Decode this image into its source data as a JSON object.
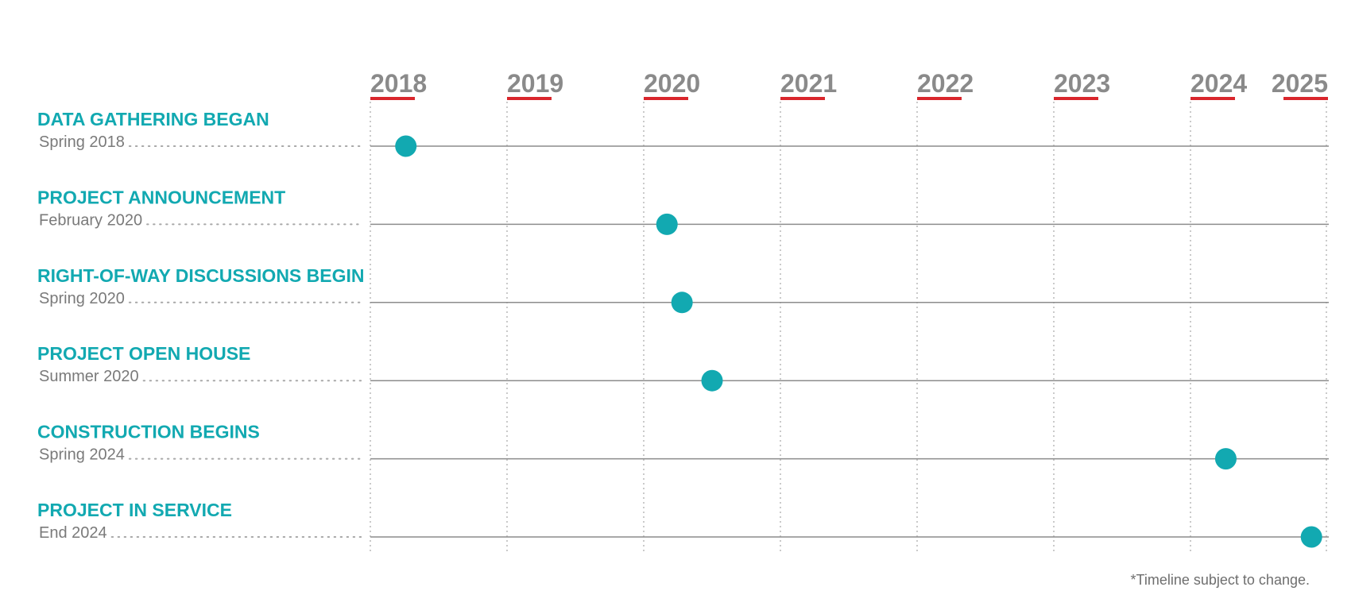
{
  "chart_data": {
    "type": "scatter",
    "x_axis": {
      "tick_labels": [
        "2018",
        "2019",
        "2020",
        "2021",
        "2022",
        "2023",
        "2024",
        "2025"
      ],
      "range": [
        2018,
        2025
      ],
      "grid": true,
      "grid_style": "dotted vertical"
    },
    "milestones": [
      {
        "title": "DATA GATHERING BEGAN",
        "date": "Spring 2018",
        "x": 2018.26
      },
      {
        "title": "PROJECT ANNOUNCEMENT",
        "date": "February 2020",
        "x": 2020.17
      },
      {
        "title": "RIGHT-OF-WAY DISCUSSIONS BEGIN",
        "date": "Spring 2020",
        "x": 2020.28
      },
      {
        "title": "PROJECT OPEN HOUSE",
        "date": "Summer 2020",
        "x": 2020.5
      },
      {
        "title": "CONSTRUCTION BEGINS",
        "date": "Spring 2024",
        "x": 2024.26
      },
      {
        "title": "PROJECT IN SERVICE",
        "date": "End 2024",
        "x": 2024.89
      }
    ],
    "footnote": "*Timeline subject to change."
  },
  "colors": {
    "marker": "#12a9b1",
    "title": "#12a9b1",
    "year_label": "#8a8a8a",
    "year_underline": "#d9262c",
    "row_line": "#8c8c8c",
    "grid": "#b9b9b9",
    "leader_dots": "#a8a8a8",
    "date_text": "#7a7a7a"
  }
}
